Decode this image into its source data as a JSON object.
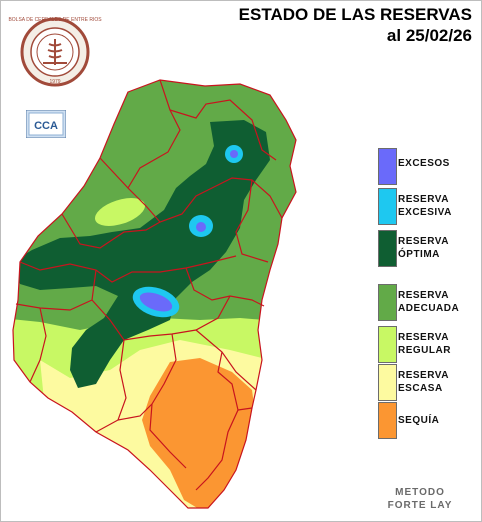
{
  "title": {
    "line1": "ESTADO DE LAS RESERVAS",
    "line2": "al 25/02/26"
  },
  "logo": {
    "text": "BOLSA DE CEREALES DE ENTRE RIOS",
    "year": "1979"
  },
  "badge": {
    "text": "CCA"
  },
  "legend": [
    {
      "line1": "EXCESOS",
      "line2": "",
      "color": "#6a6afa"
    },
    {
      "line1": "RESERVA",
      "line2": "EXCESIVA",
      "color": "#1ec8f0"
    },
    {
      "line1": "RESERVA",
      "line2": "ÓPTIMA",
      "color": "#0f5e32"
    },
    {
      "line1": "RESERVA",
      "line2": "ADECUADA",
      "color": "#62aa48"
    },
    {
      "line1": "RESERVA",
      "line2": "REGULAR",
      "color": "#c8f864"
    },
    {
      "line1": "RESERVA",
      "line2": "ESCASA",
      "color": "#fdfaa0"
    },
    {
      "line1": "SEQUÍA",
      "line2": "",
      "color": "#fb9632"
    }
  ],
  "method": {
    "line1": "METODO",
    "line2": "FORTE LAY"
  }
}
